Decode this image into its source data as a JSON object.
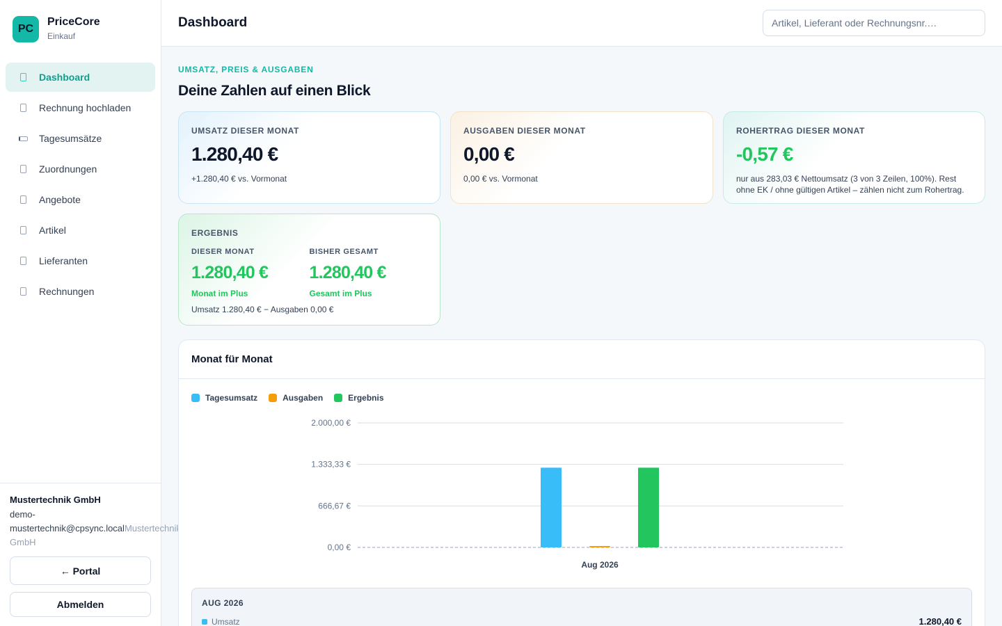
{
  "brand": {
    "logo": "PC",
    "name": "PriceCore",
    "subtitle": "Einkauf"
  },
  "nav": [
    {
      "label": "Dashboard",
      "icon": "dashboard-icon",
      "active": true
    },
    {
      "label": "Rechnung hochladen",
      "icon": "upload-icon"
    },
    {
      "label": "Tagesumsätze",
      "icon": "cash-register-icon"
    },
    {
      "label": "Zuordnungen",
      "icon": "mapping-icon"
    },
    {
      "label": "Angebote",
      "icon": "offer-icon"
    },
    {
      "label": "Artikel",
      "icon": "article-icon"
    },
    {
      "label": "Lieferanten",
      "icon": "supplier-icon"
    },
    {
      "label": "Rechnungen",
      "icon": "invoice-icon"
    }
  ],
  "account": {
    "org": "Mustertechnik GmbH",
    "email": "demo-mustertechnik@cpsync.local",
    "org_suffix": "Mustertechnik GmbH",
    "portal_label": "← Portal",
    "logout_label": "Abmelden"
  },
  "header": {
    "title": "Dashboard",
    "search_placeholder": "Artikel, Lieferant oder Rechnungsnr.…"
  },
  "intro": {
    "eyebrow": "UMSATZ, PREIS & AUSGABEN",
    "headline": "Deine Zahlen auf einen Blick"
  },
  "kpis": {
    "revenue": {
      "label": "Umsatz dieser Monat",
      "value": "1.280,40 €",
      "note": "+1.280,40 € vs. Vormonat"
    },
    "expenses": {
      "label": "Ausgaben dieser Monat",
      "value": "0,00 €",
      "note": "0,00 € vs. Vormonat"
    },
    "gross_profit": {
      "label": "Rohertrag dieser Monat",
      "value": "-0,57 €",
      "note": "nur aus 283,03 € Nettoumsatz (3 von 3 Zeilen, 100%). Rest ohne EK / ohne gültigen Artikel – zählen nicht zum Rohertrag."
    }
  },
  "result": {
    "label": "Ergebnis",
    "month_label": "DIESER MONAT",
    "month_value": "1.280,40 €",
    "month_status": "Monat im Plus",
    "total_label": "BISHER GESAMT",
    "total_value": "1.280,40 €",
    "total_status": "Gesamt im Plus",
    "formula": "Umsatz 1.280,40 € − Ausgaben 0,00 €"
  },
  "monthly": {
    "title": "Monat für Monat",
    "detail": {
      "month": "AUG 2026",
      "row_label": "Umsatz",
      "row_value": "1.280,40 €"
    }
  },
  "colors": {
    "revenue": "#38bdf8",
    "expenses": "#f59e0b",
    "result": "#22c55e",
    "accent": "#14b8a6"
  },
  "chart_data": {
    "type": "bar",
    "categories": [
      "Aug 2026"
    ],
    "series": [
      {
        "name": "Tagesumsatz",
        "values": [
          1280.4
        ],
        "color": "#38bdf8"
      },
      {
        "name": "Ausgaben",
        "values": [
          0
        ],
        "color": "#f59e0b"
      },
      {
        "name": "Ergebnis",
        "values": [
          1280.4
        ],
        "color": "#22c55e"
      }
    ],
    "ylim": [
      0,
      2000
    ],
    "yticks": [
      0,
      666.67,
      1333.33,
      2000
    ],
    "ytick_labels": [
      "0,00 €",
      "666,67 €",
      "1.333,33 €",
      "2.000,00 €"
    ],
    "grid": true,
    "legend": "top-left"
  }
}
